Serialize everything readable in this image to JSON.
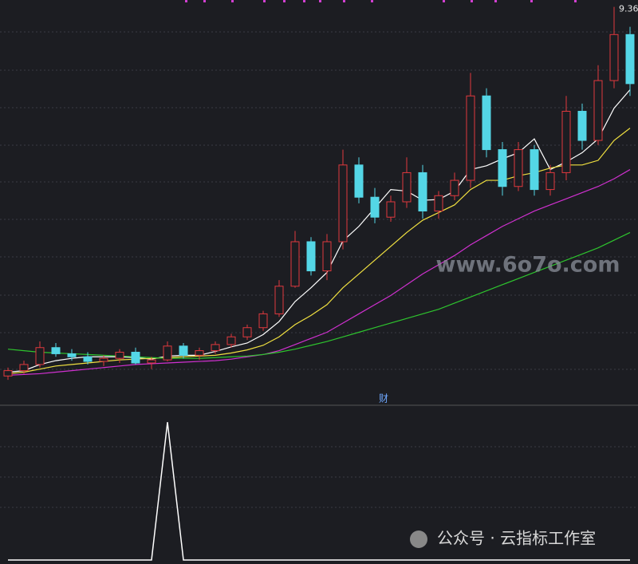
{
  "chart_data": [
    {
      "type": "candlestick",
      "open": [
        4.55,
        4.62,
        4.7,
        4.92,
        4.84,
        4.8,
        4.74,
        4.78,
        4.86,
        4.72,
        4.76,
        4.94,
        4.82,
        4.88,
        4.96,
        5.06,
        5.18,
        5.36,
        5.72,
        6.3,
        5.92,
        6.3,
        7.3,
        6.88,
        6.62,
        6.82,
        7.2,
        6.7,
        6.9,
        7.1,
        8.2,
        7.5,
        7.02,
        7.5,
        6.98,
        7.2,
        8.0,
        7.62,
        8.4,
        9.0
      ],
      "high": [
        4.66,
        4.75,
        5.0,
        4.98,
        4.9,
        4.86,
        4.82,
        4.9,
        4.92,
        4.8,
        5.0,
        4.98,
        4.92,
        5.0,
        5.1,
        5.22,
        5.4,
        5.8,
        6.44,
        6.36,
        6.4,
        7.5,
        7.4,
        7.0,
        6.9,
        7.4,
        7.3,
        6.96,
        7.2,
        8.5,
        8.3,
        7.6,
        7.6,
        7.56,
        7.3,
        8.2,
        8.1,
        8.6,
        9.36,
        9.1
      ],
      "low": [
        4.5,
        4.58,
        4.66,
        4.8,
        4.75,
        4.7,
        4.68,
        4.72,
        4.7,
        4.64,
        4.74,
        4.78,
        4.76,
        4.84,
        4.92,
        5.02,
        5.14,
        5.32,
        5.7,
        5.86,
        5.8,
        6.2,
        6.8,
        6.54,
        6.56,
        6.74,
        6.6,
        6.6,
        6.84,
        7.0,
        7.4,
        6.9,
        6.96,
        6.9,
        6.9,
        7.1,
        7.5,
        7.56,
        8.3,
        8.2
      ],
      "close": [
        4.62,
        4.7,
        4.92,
        4.84,
        4.8,
        4.74,
        4.78,
        4.86,
        4.72,
        4.76,
        4.94,
        4.82,
        4.88,
        4.96,
        5.06,
        5.18,
        5.36,
        5.72,
        6.3,
        5.92,
        6.3,
        7.3,
        6.88,
        6.62,
        6.82,
        7.2,
        6.7,
        6.9,
        7.1,
        8.2,
        7.5,
        7.02,
        7.5,
        6.98,
        7.2,
        8.0,
        7.62,
        8.4,
        9.0,
        8.36
      ],
      "up_color": "#e0393e",
      "down_color": "#54d6e6",
      "lines": [
        {
          "color": "#ffffff",
          "values": [
            4.6,
            4.62,
            4.7,
            4.75,
            4.78,
            4.8,
            4.8,
            4.8,
            4.79,
            4.77,
            4.81,
            4.82,
            4.82,
            4.87,
            4.93,
            4.98,
            5.09,
            5.26,
            5.52,
            5.7,
            5.9,
            6.31,
            6.5,
            6.74,
            6.98,
            6.96,
            6.84,
            6.85,
            6.96,
            7.24,
            7.29,
            7.38,
            7.46,
            7.64,
            7.24,
            7.34,
            7.46,
            7.64,
            8.04,
            8.28
          ]
        },
        {
          "color": "#f0e040",
          "values": [
            4.58,
            4.6,
            4.64,
            4.68,
            4.7,
            4.72,
            4.74,
            4.76,
            4.77,
            4.78,
            4.79,
            4.8,
            4.81,
            4.82,
            4.85,
            4.89,
            4.95,
            5.06,
            5.22,
            5.34,
            5.48,
            5.7,
            5.88,
            6.06,
            6.24,
            6.42,
            6.58,
            6.68,
            6.78,
            6.98,
            7.1,
            7.1,
            7.16,
            7.2,
            7.26,
            7.3,
            7.3,
            7.36,
            7.62,
            7.78
          ]
        },
        {
          "color": "#d030d0",
          "values": [
            4.56,
            4.57,
            4.58,
            4.6,
            4.62,
            4.64,
            4.66,
            4.68,
            4.7,
            4.71,
            4.72,
            4.73,
            4.74,
            4.75,
            4.77,
            4.8,
            4.83,
            4.88,
            4.96,
            5.04,
            5.12,
            5.24,
            5.36,
            5.48,
            5.6,
            5.74,
            5.88,
            6.0,
            6.12,
            6.26,
            6.38,
            6.5,
            6.6,
            6.7,
            6.78,
            6.86,
            6.94,
            7.02,
            7.12,
            7.24
          ]
        },
        {
          "color": "#2ec42e",
          "values": [
            4.9,
            4.88,
            4.86,
            4.85,
            4.84,
            4.83,
            4.82,
            4.81,
            4.8,
            4.79,
            4.78,
            4.78,
            4.78,
            4.79,
            4.8,
            4.81,
            4.83,
            4.86,
            4.9,
            4.95,
            5.0,
            5.06,
            5.12,
            5.18,
            5.24,
            5.3,
            5.36,
            5.42,
            5.5,
            5.58,
            5.66,
            5.74,
            5.82,
            5.9,
            5.98,
            6.06,
            6.14,
            6.22,
            6.32,
            6.42
          ]
        }
      ],
      "ylim": [
        4.2,
        9.45
      ]
    },
    {
      "type": "line",
      "color": "#ffffff",
      "values": [
        0,
        0,
        0,
        0,
        0,
        0,
        0,
        0,
        0,
        0,
        1,
        0,
        0,
        0,
        0,
        0,
        0,
        0,
        0,
        0,
        0,
        0,
        0,
        0,
        0,
        0,
        0,
        0,
        0,
        0,
        0,
        0,
        0,
        0,
        0,
        0,
        0,
        0,
        0,
        0
      ],
      "ylim": [
        0,
        1.1
      ]
    }
  ],
  "overlay": {
    "marker": "财",
    "watermark": "www.6o7o.com",
    "caption": "公众号 · 云指标工作室"
  }
}
